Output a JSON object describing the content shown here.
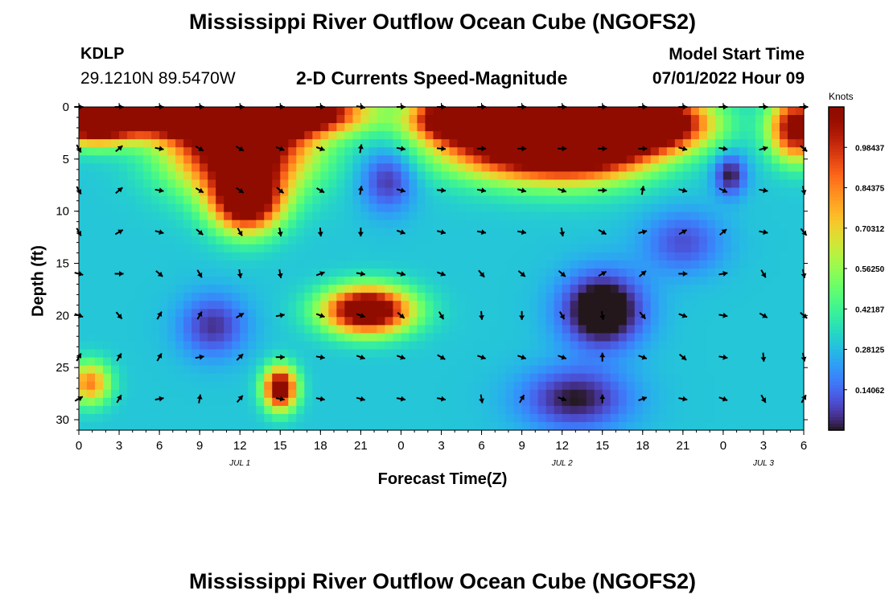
{
  "header": {
    "title": "Mississippi River Outflow Ocean Cube (NGOFS2)",
    "station": "KDLP",
    "coordinates": "29.1210N  89.5470W",
    "subtitle": "2-D Currents Speed-Magnitude",
    "model_start_label": "Model Start Time",
    "model_start_value": "07/01/2022 Hour 09"
  },
  "footer": {
    "title": "Mississippi River Outflow Ocean Cube (NGOFS2)"
  },
  "chart_data": {
    "type": "heatmap",
    "xlabel": "Forecast Time(Z)",
    "ylabel": "Depth (ft)",
    "x_ticks": [
      "0",
      "3",
      "6",
      "9",
      "12",
      "15",
      "18",
      "21",
      "0",
      "3",
      "6",
      "9",
      "12",
      "15",
      "18",
      "21",
      "0",
      "3",
      "6"
    ],
    "x_hours": [
      0,
      3,
      6,
      9,
      12,
      15,
      18,
      21,
      24,
      27,
      30,
      33,
      36,
      39,
      42,
      45,
      48,
      51,
      54
    ],
    "xlim": [
      0,
      54
    ],
    "y_ticks": [
      "0",
      "5",
      "10",
      "15",
      "20",
      "25",
      "30"
    ],
    "ylim": [
      0,
      31
    ],
    "date_labels": [
      {
        "text": "JUL 1",
        "hour": 12
      },
      {
        "text": "JUL 2",
        "hour": 36
      },
      {
        "text": "JUL 3",
        "hour": 51
      }
    ],
    "colorbar": {
      "title": "Knots",
      "tick_labels": [
        "0.98437",
        "0.84375",
        "0.70312",
        "0.56250",
        "0.42187",
        "0.28125",
        "0.14062"
      ],
      "ticks": [
        0.98437,
        0.84375,
        0.70312,
        0.5625,
        0.42187,
        0.28125,
        0.14062
      ],
      "vmin": 0.0,
      "vmax": 1.125,
      "colormap": "turbo"
    },
    "speed_blobs": [
      {
        "hour": 7,
        "depth": 0.8,
        "value": 1.0,
        "sx": 6,
        "sy": 2.0
      },
      {
        "hour": 12,
        "depth": 3.5,
        "value": 1.1,
        "sx": 5,
        "sy": 4.5
      },
      {
        "hour": 12.5,
        "depth": 9.0,
        "value": 0.95,
        "sx": 2.5,
        "sy": 3.0
      },
      {
        "hour": 16,
        "depth": 0.5,
        "value": 1.05,
        "sx": 5,
        "sy": 2.0
      },
      {
        "hour": 1,
        "depth": 1.5,
        "value": 0.95,
        "sx": 3,
        "sy": 2.0
      },
      {
        "hour": 33,
        "depth": 3.0,
        "value": 1.1,
        "sx": 6,
        "sy": 3.5
      },
      {
        "hour": 38,
        "depth": 3.0,
        "value": 1.05,
        "sx": 5,
        "sy": 3.5
      },
      {
        "hour": 43,
        "depth": 1.5,
        "value": 1.0,
        "sx": 4,
        "sy": 2.5
      },
      {
        "hour": 28,
        "depth": 1.0,
        "value": 0.95,
        "sx": 3,
        "sy": 2.0
      },
      {
        "hour": 53.5,
        "depth": 2.0,
        "value": 0.9,
        "sx": 2,
        "sy": 3.0
      },
      {
        "hour": 21.5,
        "depth": 19.5,
        "value": 1.05,
        "sx": 3.2,
        "sy": 2.2
      },
      {
        "hour": 15,
        "depth": 27,
        "value": 0.95,
        "sx": 1.2,
        "sy": 2.0
      },
      {
        "hour": 0.8,
        "depth": 26.5,
        "value": 0.55,
        "sx": 1.5,
        "sy": 2.0
      },
      {
        "hour": 39,
        "depth": 19.5,
        "value": -0.45,
        "sx": 3.0,
        "sy": 3.5
      },
      {
        "hour": 48.5,
        "depth": 6.5,
        "value": -0.3,
        "sx": 1.2,
        "sy": 2.0
      },
      {
        "hour": 23,
        "depth": 7.0,
        "value": -0.25,
        "sx": 2.0,
        "sy": 3.0
      },
      {
        "hour": 10,
        "depth": 21,
        "value": -0.25,
        "sx": 2.5,
        "sy": 3.0
      },
      {
        "hour": 37,
        "depth": 28,
        "value": -0.3,
        "sx": 4.0,
        "sy": 3.0
      },
      {
        "hour": 45,
        "depth": 13,
        "value": -0.2,
        "sx": 3.0,
        "sy": 3.0
      }
    ],
    "background_speed": 0.3,
    "vector_hours": [
      0,
      3,
      6,
      9,
      12,
      15,
      18,
      21,
      24,
      27,
      30,
      33,
      36,
      39,
      42,
      45,
      48,
      51,
      54
    ],
    "vector_depths": [
      0,
      4,
      8,
      12,
      16,
      20,
      24,
      28
    ],
    "vector_angles_deg": [
      [
        0,
        0,
        0,
        0,
        0,
        0,
        0,
        10,
        0,
        0,
        0,
        0,
        0,
        0,
        0,
        0,
        0,
        0,
        0
      ],
      [
        60,
        -40,
        10,
        30,
        30,
        20,
        20,
        -80,
        10,
        5,
        0,
        0,
        0,
        0,
        0,
        15,
        10,
        -15,
        40
      ],
      [
        60,
        -40,
        10,
        30,
        35,
        40,
        30,
        -80,
        15,
        5,
        10,
        15,
        20,
        0,
        -80,
        15,
        25,
        10,
        80
      ],
      [
        60,
        -30,
        15,
        40,
        60,
        80,
        85,
        90,
        20,
        15,
        10,
        10,
        80,
        30,
        -15,
        -30,
        -40,
        10,
        50
      ],
      [
        15,
        0,
        40,
        60,
        80,
        80,
        -20,
        10,
        15,
        20,
        50,
        40,
        40,
        -30,
        -40,
        0,
        -10,
        60,
        80
      ],
      [
        20,
        50,
        -60,
        -60,
        -30,
        -10,
        20,
        20,
        40,
        60,
        85,
        90,
        60,
        80,
        50,
        20,
        10,
        30,
        40
      ],
      [
        -60,
        -60,
        -60,
        -10,
        -45,
        0,
        10,
        20,
        20,
        30,
        20,
        20,
        20,
        -90,
        20,
        40,
        10,
        85,
        80
      ],
      [
        -30,
        -60,
        -10,
        -80,
        -50,
        10,
        10,
        15,
        10,
        10,
        80,
        -60,
        20,
        -90,
        -20,
        10,
        20,
        60,
        -60
      ]
    ]
  }
}
